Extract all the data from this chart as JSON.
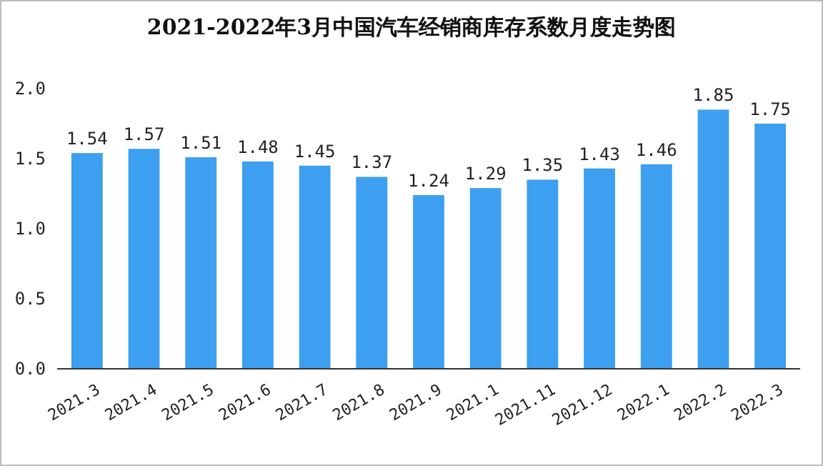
{
  "chart_data": {
    "type": "bar",
    "title": "2021-2022年3月中国汽车经销商库存系数月度走势图",
    "categories": [
      "2021.3",
      "2021.4",
      "2021.5",
      "2021.6",
      "2021.7",
      "2021.8",
      "2021.9",
      "2021.1",
      "2021.11",
      "2021.12",
      "2022.1",
      "2022.2",
      "2022.3"
    ],
    "values": [
      1.54,
      1.57,
      1.51,
      1.48,
      1.45,
      1.37,
      1.24,
      1.29,
      1.35,
      1.43,
      1.46,
      1.85,
      1.75
    ],
    "color": "#3d9ff0",
    "ylim": [
      0,
      2.0
    ],
    "yticks": [
      {
        "value": 0,
        "label": "0.0"
      },
      {
        "value": 0.5,
        "label": "0.5"
      },
      {
        "value": 1,
        "label": "1.0"
      },
      {
        "value": 1.5,
        "label": "1.5"
      },
      {
        "value": 2,
        "label": "2.0"
      }
    ],
    "data_labels": true,
    "grid": false
  }
}
